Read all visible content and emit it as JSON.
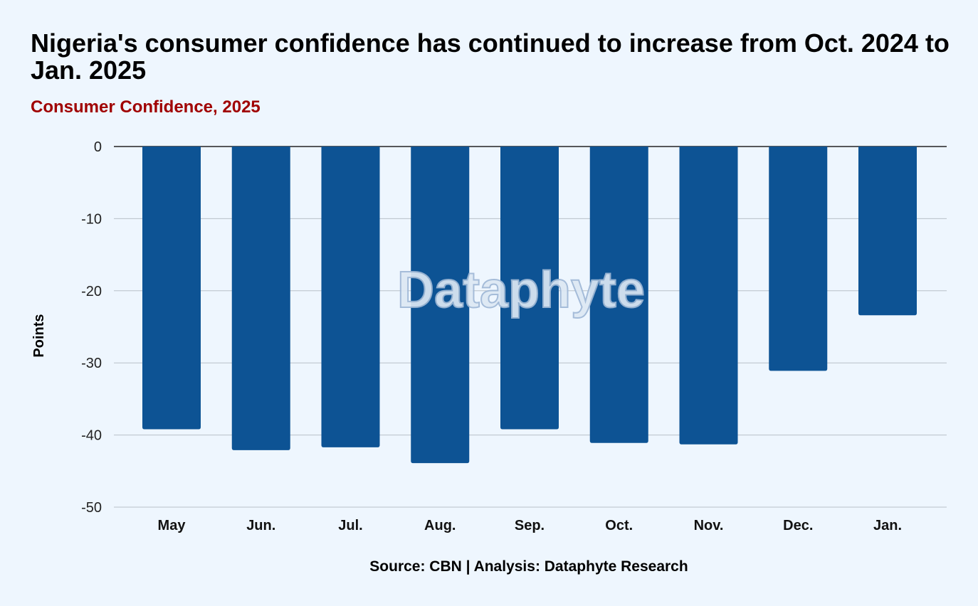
{
  "chart_data": {
    "type": "bar",
    "title": "Nigeria's consumer confidence has continued to increase from Oct. 2024 to Jan. 2025",
    "subtitle": "Consumer Confidence, 2025",
    "xlabel": "",
    "ylabel": "Points",
    "categories": [
      "May",
      "Jun.",
      "Jul.",
      "Aug.",
      "Sep.",
      "Oct.",
      "Nov.",
      "Dec.",
      "Jan."
    ],
    "values": [
      -39.2,
      -42.1,
      -41.7,
      -43.9,
      -39.2,
      -41.1,
      -41.3,
      -31.1,
      -23.4
    ],
    "ylim": [
      -50,
      0
    ],
    "yticks": [
      0,
      -10,
      -20,
      -30,
      -40,
      -50
    ],
    "grid": true,
    "bar_color": "#0d5394",
    "source": "Source: CBN | Analysis: Dataphyte Research",
    "watermark": "Dataphyte"
  }
}
